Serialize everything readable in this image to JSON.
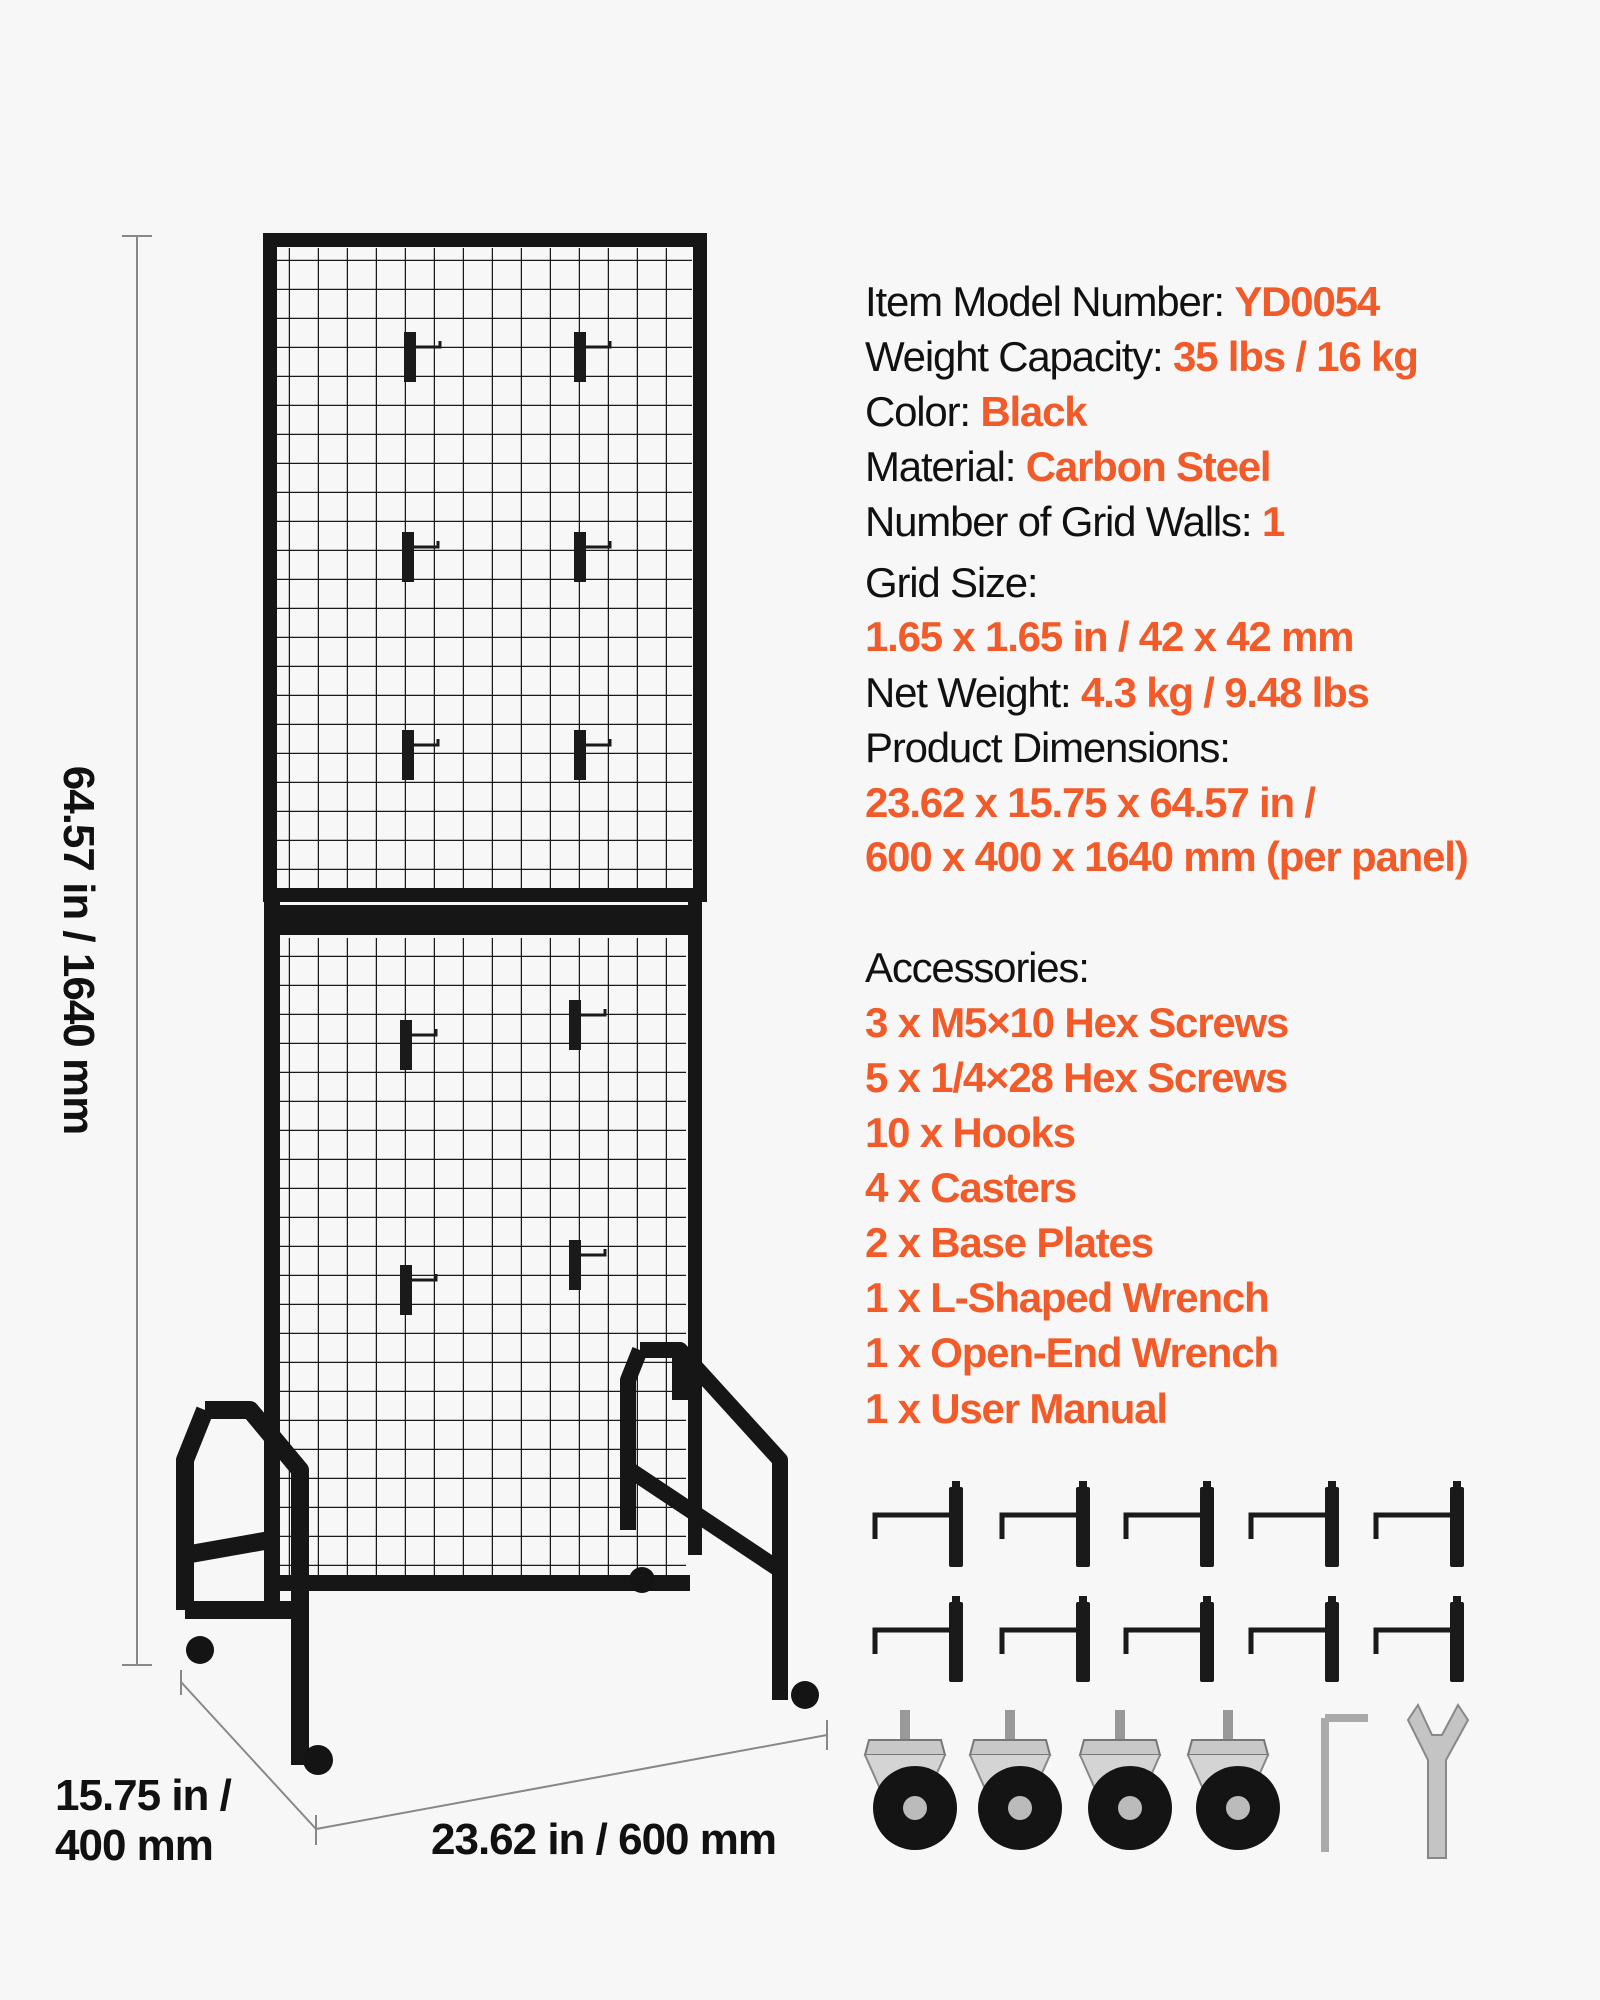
{
  "colors": {
    "accent": "#f15a29",
    "text": "#111111",
    "background": "#f7f7f7"
  },
  "dimensions": {
    "height": "64.57 in / 1640 mm",
    "depth_line1": "15.75 in /",
    "depth_line2": "400 mm",
    "width": "23.62 in / 600 mm"
  },
  "specs": [
    {
      "label": "Item Model Number: ",
      "value": "YD0054"
    },
    {
      "label": "Weight Capacity: ",
      "value": "35 lbs / 16 kg"
    },
    {
      "label": "Color: ",
      "value": "Black"
    },
    {
      "label": "Material: ",
      "value": "Carbon Steel"
    },
    {
      "label": "Number of Grid Walls: ",
      "value": "1"
    },
    {
      "label": "Grid Size:",
      "value": ""
    },
    {
      "label": "",
      "value": "1.65 x 1.65 in / 42 x 42 mm"
    },
    {
      "label": "Net Weight: ",
      "value": "4.3 kg / 9.48 lbs"
    },
    {
      "label": "Product Dimensions:",
      "value": ""
    },
    {
      "label": "",
      "value": "23.62 x 15.75 x 64.57 in /"
    },
    {
      "label": "",
      "value": "600 x 400 x 1640 mm (per panel)"
    }
  ],
  "accessories": {
    "title": "Accessories:",
    "items": [
      "3 x M5×10 Hex Screws",
      "5 x 1/4×28 Hex Screws",
      "10 x Hooks",
      "4 x Casters",
      "2 x Base Plates",
      "1 x L-Shaped Wrench",
      "1 x Open-End Wrench",
      "1 x User Manual"
    ]
  },
  "icons": [
    "grid-wall-rack",
    "hook",
    "caster",
    "l-shaped-wrench",
    "open-end-wrench"
  ]
}
